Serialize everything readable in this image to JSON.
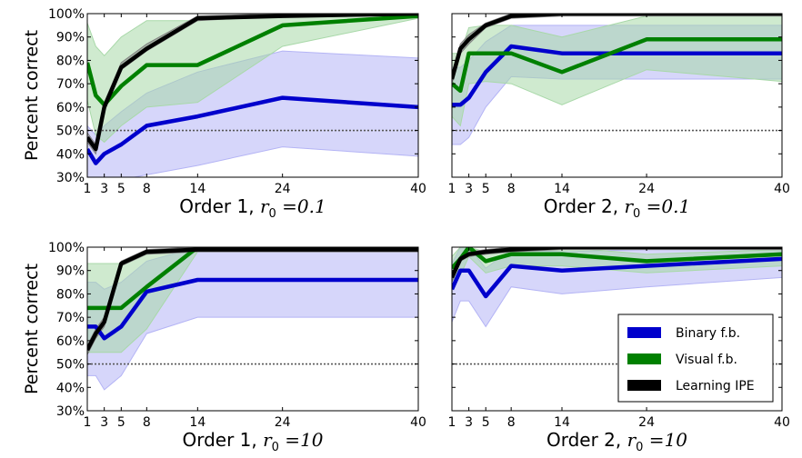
{
  "chart_data": [
    {
      "type": "line",
      "title": "Order 1, r0 = 0.1",
      "title_parts": [
        "Order 1, ",
        "r",
        "0",
        " =0.1"
      ],
      "ylabel": "Percent correct",
      "ylim": [
        30,
        100
      ],
      "xlim": [
        1,
        40
      ],
      "x_ticks": [
        1,
        3,
        5,
        8,
        14,
        24,
        40
      ],
      "y_ticks": [
        "30%",
        "40%",
        "50%",
        "60%",
        "70%",
        "80%",
        "90%",
        "100%"
      ],
      "chance": 50,
      "series": [
        {
          "name": "Binary f.b.",
          "color": "#0000cc",
          "band_color": "#b4b4f5",
          "x": [
            1,
            2,
            3,
            5,
            8,
            14,
            24,
            40
          ],
          "y": [
            42,
            36,
            40,
            44,
            52,
            56,
            64,
            60
          ],
          "lo": [
            30,
            28,
            28,
            29,
            31,
            35,
            43,
            39
          ],
          "hi": [
            52,
            48,
            52,
            58,
            66,
            75,
            84,
            81
          ]
        },
        {
          "name": "Visual f.b.",
          "color": "#008000",
          "band_color": "#a8d8a8",
          "x": [
            1,
            2,
            3,
            5,
            8,
            14,
            24,
            40
          ],
          "y": [
            79,
            65,
            61,
            69,
            78,
            78,
            95,
            99
          ],
          "lo": [
            63,
            48,
            45,
            52,
            60,
            62,
            86,
            98
          ],
          "hi": [
            96,
            86,
            82,
            90,
            97,
            97,
            100,
            100
          ]
        },
        {
          "name": "Learning IPE",
          "color": "#000000",
          "band_color": "#808080",
          "x": [
            1,
            2,
            3,
            5,
            8,
            14,
            24,
            40
          ],
          "y": [
            47,
            42,
            60,
            77,
            85,
            98,
            99,
            100
          ],
          "lo": [
            45,
            40,
            58,
            76,
            84,
            97,
            99,
            99
          ],
          "hi": [
            49,
            44,
            62,
            79,
            87,
            99,
            100,
            100
          ]
        }
      ]
    },
    {
      "type": "line",
      "title": "Order 2, r0 = 0.1",
      "title_parts": [
        "Order 2, ",
        "r",
        "0",
        " =0.1"
      ],
      "ylabel": "",
      "ylim": [
        30,
        100
      ],
      "xlim": [
        1,
        40
      ],
      "x_ticks": [
        1,
        3,
        5,
        8,
        14,
        24,
        40
      ],
      "y_ticks": [],
      "chance": 50,
      "series": [
        {
          "name": "Binary f.b.",
          "color": "#0000cc",
          "band_color": "#b4b4f5",
          "x": [
            1,
            2,
            3,
            5,
            8,
            14,
            24,
            40
          ],
          "y": [
            61,
            61,
            64,
            75,
            86,
            83,
            83,
            83
          ],
          "lo": [
            44,
            44,
            47,
            60,
            73,
            72,
            72,
            72
          ],
          "hi": [
            77,
            77,
            80,
            88,
            95,
            95,
            95,
            95
          ]
        },
        {
          "name": "Visual f.b.",
          "color": "#008000",
          "band_color": "#a8d8a8",
          "x": [
            1,
            2,
            3,
            5,
            8,
            14,
            24,
            40
          ],
          "y": [
            70,
            67,
            83,
            83,
            83,
            75,
            89,
            89
          ],
          "lo": [
            56,
            52,
            70,
            71,
            70,
            61,
            76,
            71
          ],
          "hi": [
            83,
            83,
            94,
            95,
            95,
            90,
            99,
            100
          ]
        },
        {
          "name": "Learning IPE",
          "color": "#000000",
          "band_color": "#808080",
          "x": [
            1,
            2,
            3,
            5,
            8,
            14,
            24,
            40
          ],
          "y": [
            72,
            85,
            89,
            95,
            99,
            100,
            100,
            100
          ],
          "lo": [
            70,
            83,
            87,
            94,
            98,
            99,
            99,
            99
          ],
          "hi": [
            74,
            87,
            91,
            96,
            100,
            100,
            100,
            100
          ]
        }
      ]
    },
    {
      "type": "line",
      "title": "Order 1, r0 = 10",
      "title_parts": [
        "Order 1, ",
        "r",
        "0",
        " =10"
      ],
      "ylabel": "Percent correct",
      "ylim": [
        30,
        100
      ],
      "xlim": [
        1,
        40
      ],
      "x_ticks": [
        1,
        3,
        5,
        8,
        14,
        24,
        40
      ],
      "y_ticks": [
        "30%",
        "40%",
        "50%",
        "60%",
        "70%",
        "80%",
        "90%",
        "100%"
      ],
      "chance": 50,
      "series": [
        {
          "name": "Binary f.b.",
          "color": "#0000cc",
          "band_color": "#b4b4f5",
          "x": [
            1,
            2,
            3,
            5,
            8,
            14,
            24,
            40
          ],
          "y": [
            66,
            66,
            61,
            66,
            81,
            86,
            86,
            86
          ],
          "lo": [
            45,
            45,
            39,
            45,
            63,
            70,
            70,
            70
          ],
          "hi": [
            85,
            85,
            82,
            85,
            94,
            100,
            100,
            100
          ]
        },
        {
          "name": "Visual f.b.",
          "color": "#008000",
          "band_color": "#a8d8a8",
          "x": [
            1,
            2,
            3,
            5,
            8,
            14,
            24,
            40
          ],
          "y": [
            74,
            74,
            74,
            74,
            83,
            100,
            100,
            100
          ],
          "lo": [
            55,
            55,
            55,
            55,
            65,
            98,
            100,
            100
          ],
          "hi": [
            93,
            93,
            93,
            93,
            97,
            100,
            100,
            100
          ]
        },
        {
          "name": "Learning IPE",
          "color": "#000000",
          "band_color": "#808080",
          "x": [
            1,
            2,
            3,
            5,
            8,
            14,
            24,
            40
          ],
          "y": [
            56,
            63,
            68,
            93,
            98,
            99,
            99,
            99
          ],
          "lo": [
            54,
            61,
            66,
            92,
            97,
            98,
            98,
            98
          ],
          "hi": [
            58,
            65,
            70,
            94,
            99,
            100,
            100,
            100
          ]
        }
      ]
    },
    {
      "type": "line",
      "title": "Order 2, r0 = 10",
      "title_parts": [
        "Order 2, ",
        "r",
        "0",
        " =10"
      ],
      "ylabel": "",
      "ylim": [
        30,
        100
      ],
      "xlim": [
        1,
        40
      ],
      "x_ticks": [
        1,
        3,
        5,
        8,
        14,
        24,
        40
      ],
      "y_ticks": [],
      "chance": 50,
      "series": [
        {
          "name": "Binary f.b.",
          "color": "#0000cc",
          "band_color": "#b4b4f5",
          "x": [
            1,
            2,
            3,
            5,
            8,
            14,
            24,
            40
          ],
          "y": [
            82,
            90,
            90,
            79,
            92,
            90,
            92,
            95
          ],
          "lo": [
            68,
            77,
            77,
            66,
            83,
            80,
            83,
            87
          ],
          "hi": [
            93,
            100,
            100,
            91,
            99,
            98,
            99,
            100
          ]
        },
        {
          "name": "Visual f.b.",
          "color": "#008000",
          "band_color": "#a8d8a8",
          "x": [
            1,
            2,
            3,
            5,
            8,
            14,
            24,
            40
          ],
          "y": [
            91,
            95,
            100,
            94,
            97,
            97,
            94,
            97
          ],
          "lo": [
            86,
            88,
            96,
            89,
            92,
            92,
            89,
            92
          ],
          "hi": [
            96,
            100,
            100,
            98,
            100,
            100,
            97,
            99
          ]
        },
        {
          "name": "Learning IPE",
          "color": "#000000",
          "band_color": "#808080",
          "x": [
            1,
            2,
            3,
            5,
            8,
            14,
            24,
            40
          ],
          "y": [
            87,
            95,
            97,
            98,
            99,
            100,
            100,
            100
          ],
          "lo": [
            85,
            94,
            96,
            97,
            98,
            99,
            99,
            99
          ],
          "hi": [
            89,
            96,
            98,
            99,
            100,
            100,
            100,
            100
          ]
        }
      ]
    }
  ],
  "legend": {
    "placement": "lower-right of bottom-right panel",
    "entries": [
      {
        "label": "Binary f.b.",
        "color": "#0000cc"
      },
      {
        "label": "Visual f.b.",
        "color": "#008000"
      },
      {
        "label": "Learning IPE",
        "color": "#000000"
      }
    ]
  }
}
